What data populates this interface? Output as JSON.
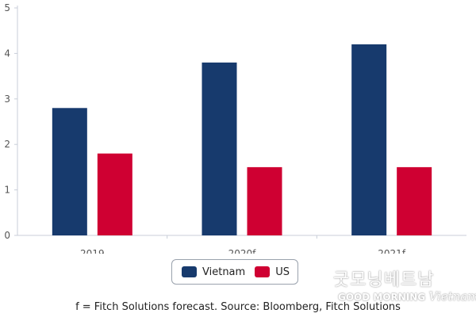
{
  "chart_data": {
    "type": "bar",
    "categories": [
      "2019",
      "2020f",
      "2021f"
    ],
    "series": [
      {
        "name": "Vietnam",
        "values": [
          2.8,
          3.8,
          4.2
        ],
        "color": "#173a6d"
      },
      {
        "name": "US",
        "values": [
          1.8,
          1.5,
          1.5
        ],
        "color": "#cf0032"
      }
    ],
    "ylim": [
      0,
      5
    ],
    "yticks": [
      "0",
      "1",
      "2",
      "3",
      "4",
      "5"
    ],
    "grid": false,
    "legend": "bottom-center"
  },
  "caption": "f = Fitch Solutions forecast. Source: Bloomberg, Fitch Solutions",
  "watermark": {
    "korean": "굿모닝베트남",
    "english": "GOOD MORNING",
    "script": "Vietnam"
  }
}
